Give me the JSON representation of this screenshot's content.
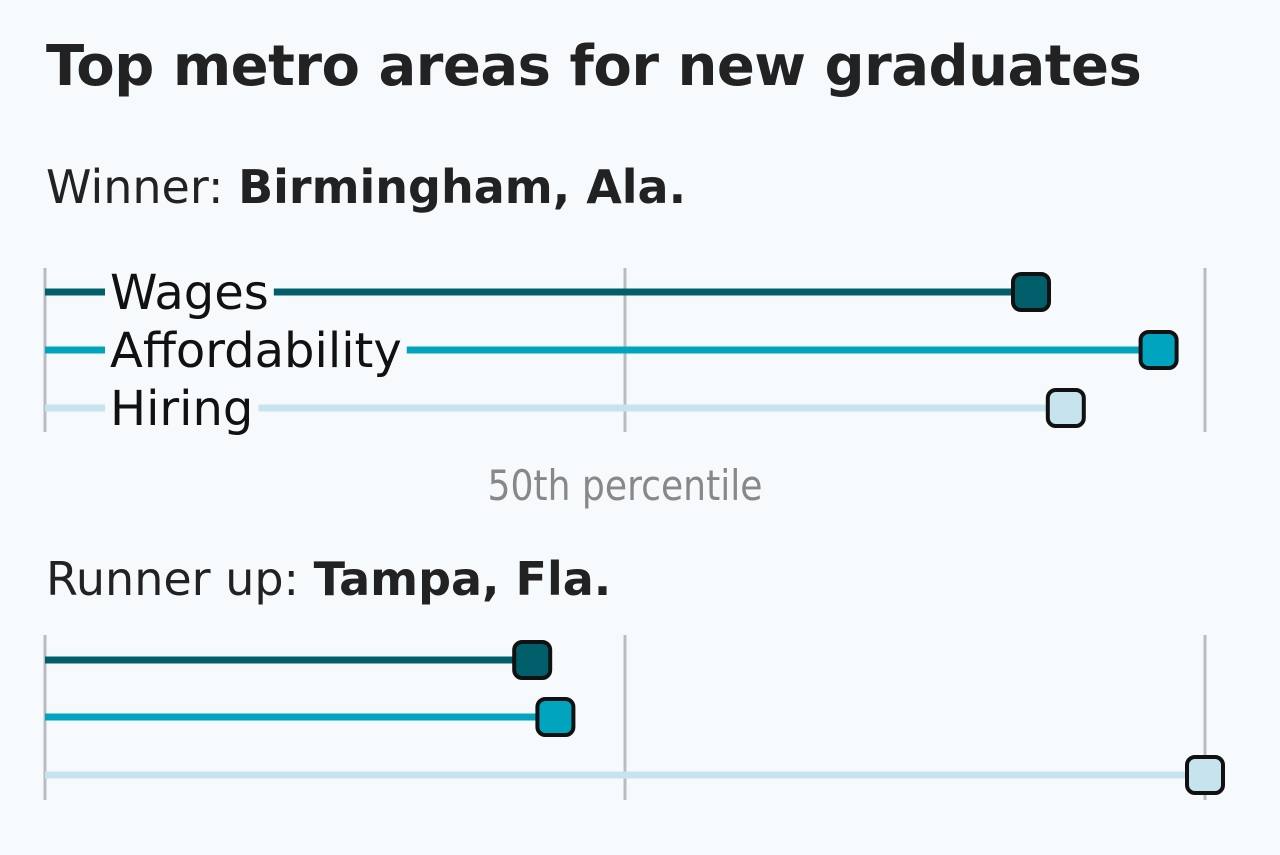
{
  "colors": {
    "wages": "#005f6b",
    "affordability": "#00a4be",
    "hiring": "#c7e4ee",
    "grid": "#b8bcc2",
    "axis_label": "#888888",
    "background": "#f7fafd"
  },
  "chart_data": {
    "type": "dot-line",
    "title": "Top metro areas for new graduates",
    "x_axis_label": "50th percentile",
    "xlim": [
      0,
      100
    ],
    "reference_lines": [
      0,
      50,
      100
    ],
    "series": [
      {
        "name": "Wages",
        "color_key": "wages"
      },
      {
        "name": "Affordability",
        "color_key": "affordability"
      },
      {
        "name": "Hiring",
        "color_key": "hiring"
      }
    ],
    "panels": [
      {
        "prefix": "Winner: ",
        "name": "Birmingham, Ala.",
        "values": [
          85,
          96,
          88
        ]
      },
      {
        "prefix": "Runner up: ",
        "name": "Tampa, Fla.",
        "values": [
          42,
          44,
          100
        ]
      }
    ]
  }
}
